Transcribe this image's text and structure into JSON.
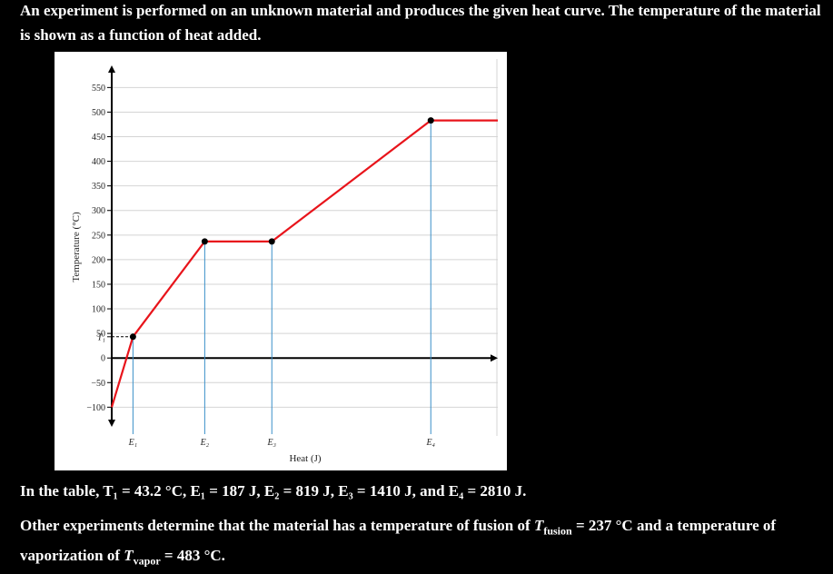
{
  "intro": "An experiment is performed on an unknown material and produces the given heat curve. The temperature of the material is shown as a function of heat added.",
  "chart_data": {
    "type": "line",
    "x_label": "Heat (J)",
    "y_label": "Temperature (°C)",
    "x": [
      0,
      187,
      819,
      1410,
      2810,
      3400
    ],
    "series": [
      {
        "color": "#e8141b",
        "values": [
          -100,
          43.2,
          237,
          237,
          483,
          483
        ]
      }
    ],
    "xlim": [
      0,
      3400
    ],
    "xticks": [
      {
        "value": 187,
        "label": "E₁"
      },
      {
        "value": 819,
        "label": "E₂"
      },
      {
        "value": 1410,
        "label": "E₃"
      },
      {
        "value": 2810,
        "label": "E₄"
      }
    ],
    "ylim": [
      -140,
      595
    ],
    "yticks": [
      {
        "value": -100,
        "label": "−100"
      },
      {
        "value": -50,
        "label": "−50"
      },
      0,
      {
        "value": 43.2,
        "label": "T₁"
      },
      50,
      100,
      150,
      200,
      250,
      300,
      350,
      400,
      450,
      500,
      550
    ],
    "grid": true
  },
  "table_note": "In the table, T₁ = 43.2 °C, E₁ = 187 J, E₂ = 819 J, E₃ = 1410 J, and E₄ = 2810 J.",
  "fusion_note": [
    "Other experiments determine that the material has a temperature of fusion of ",
    "T",
    "fusion",
    " = 237 °C and a temperature of vaporization of ",
    "T",
    "vapor",
    " = 483 °C."
  ]
}
